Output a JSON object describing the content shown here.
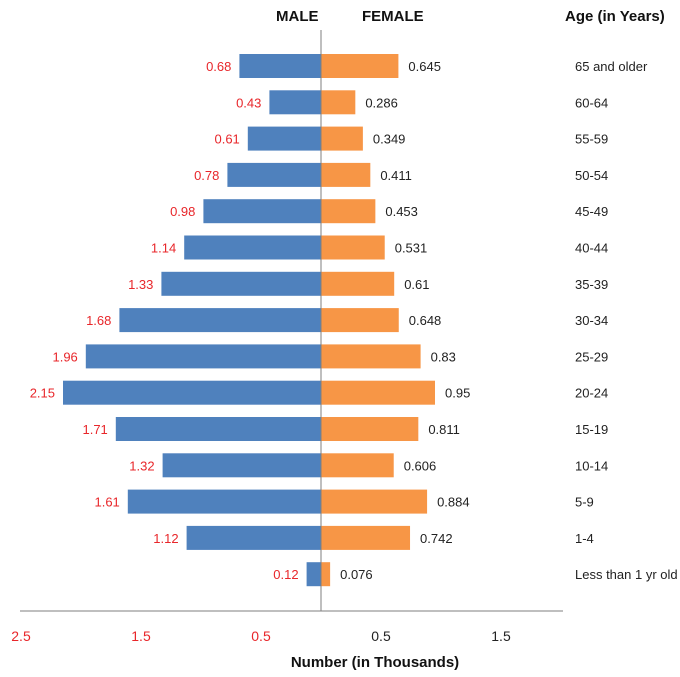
{
  "chart_data": {
    "type": "bar",
    "orientation": "horizontal",
    "subtype": "population-pyramid",
    "title": "",
    "left_header": "MALE",
    "right_header": "FEMALE",
    "category_header": "Age (in Years)",
    "xlabel": "Number (in Thousands)",
    "categories": [
      "65 and older",
      "60-64",
      "55-59",
      "50-54",
      "45-49",
      "40-44",
      "35-39",
      "30-34",
      "25-29",
      "20-24",
      "15-19",
      "10-14",
      "5-9",
      "1-4",
      "Less than 1 yr old"
    ],
    "series": [
      {
        "name": "MALE",
        "side": "left",
        "color": "#4f81bd",
        "label_color": "#e8262a",
        "values": [
          0.68,
          0.43,
          0.61,
          0.78,
          0.98,
          1.14,
          1.33,
          1.68,
          1.96,
          2.15,
          1.71,
          1.32,
          1.61,
          1.12,
          0.12
        ]
      },
      {
        "name": "FEMALE",
        "side": "right",
        "color": "#f79646",
        "label_color": "#222222",
        "values: ": null,
        "values": [
          0.645,
          0.286,
          0.349,
          0.411,
          0.453,
          0.531,
          0.61,
          0.648,
          0.83,
          0.95,
          0.811,
          0.606,
          0.884,
          0.742,
          0.076
        ]
      }
    ],
    "x_tick_labels": [
      "2.5",
      "1.5",
      "0.5",
      "0.5",
      "1.5"
    ],
    "x_tick_values": [
      -2.5,
      -1.5,
      -0.5,
      0.5,
      1.5
    ],
    "xlim": [
      -2.5,
      2.0
    ],
    "grid": false,
    "legend": "none"
  }
}
